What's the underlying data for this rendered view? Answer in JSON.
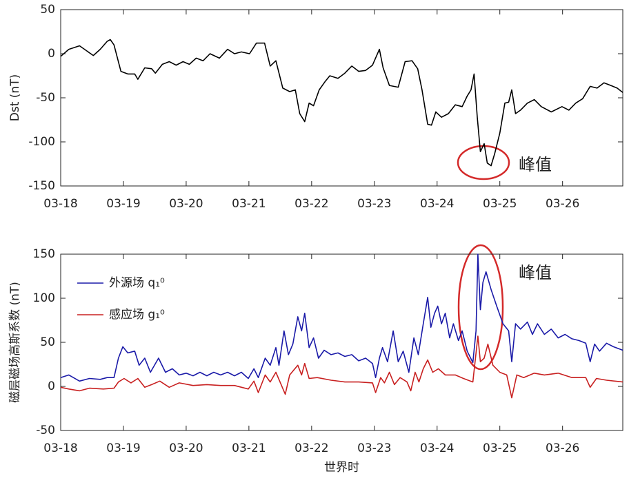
{
  "chart_data": [
    {
      "type": "line",
      "ylabel": "Dst (nT)",
      "annotation": "峰值",
      "color": "#000000",
      "xlim": [
        0,
        8.96
      ],
      "ylim": [
        -150,
        50
      ],
      "xticks": [
        {
          "value": 0,
          "label": "03-18"
        },
        {
          "value": 1,
          "label": "03-19"
        },
        {
          "value": 2,
          "label": "03-20"
        },
        {
          "value": 3,
          "label": "03-21"
        },
        {
          "value": 4,
          "label": "03-22"
        },
        {
          "value": 5,
          "label": "03-23"
        },
        {
          "value": 6,
          "label": "03-24"
        },
        {
          "value": 7,
          "label": "03-25"
        },
        {
          "value": 8,
          "label": "03-26"
        }
      ],
      "yticks": [
        -150,
        -100,
        -50,
        0,
        50
      ],
      "x": [
        0,
        0.13,
        0.3,
        0.52,
        0.63,
        0.74,
        0.79,
        0.85,
        0.96,
        1.07,
        1.18,
        1.23,
        1.34,
        1.45,
        1.51,
        1.62,
        1.73,
        1.84,
        1.95,
        2.05,
        2.16,
        2.27,
        2.38,
        2.53,
        2.66,
        2.77,
        2.88,
        3.01,
        3.12,
        3.25,
        3.34,
        3.43,
        3.54,
        3.65,
        3.74,
        3.81,
        3.89,
        3.96,
        4.03,
        4.12,
        4.22,
        4.29,
        4.42,
        4.53,
        4.64,
        4.75,
        4.86,
        4.97,
        5.08,
        5.14,
        5.24,
        5.38,
        5.49,
        5.6,
        5.69,
        5.76,
        5.85,
        5.91,
        5.98,
        6.07,
        6.18,
        6.29,
        6.4,
        6.48,
        6.54,
        6.59,
        6.64,
        6.69,
        6.75,
        6.8,
        6.86,
        6.92,
        7.0,
        7.08,
        7.14,
        7.19,
        7.25,
        7.33,
        7.44,
        7.55,
        7.66,
        7.82,
        7.99,
        8.1,
        8.21,
        8.32,
        8.44,
        8.55,
        8.66,
        8.77,
        8.87,
        8.96
      ],
      "values": [
        -3,
        5,
        9,
        -2,
        5,
        14,
        16,
        10,
        -20,
        -23,
        -23,
        -29,
        -16,
        -17,
        -22,
        -12,
        -9,
        -13,
        -9,
        -12,
        -5,
        -8,
        0,
        -5,
        5,
        0,
        2,
        0,
        12,
        12,
        -14,
        -8,
        -39,
        -43,
        -41,
        -68,
        -77,
        -56,
        -59,
        -41,
        -31,
        -25,
        -28,
        -22,
        -14,
        -20,
        -19,
        -13,
        5,
        -16,
        -36,
        -38,
        -9,
        -8,
        -17,
        -41,
        -80,
        -81,
        -66,
        -72,
        -68,
        -58,
        -60,
        -48,
        -41,
        -23,
        -72,
        -111,
        -102,
        -124,
        -127,
        -113,
        -90,
        -56,
        -55,
        -41,
        -68,
        -64,
        -56,
        -52,
        -60,
        -66,
        -60,
        -64,
        -56,
        -51,
        -37,
        -39,
        -33,
        -36,
        -39,
        -44
      ]
    },
    {
      "type": "line",
      "ylabel": "磁层磁场高斯系数 (nT)",
      "xlabel": "世界时",
      "annotation": "峰值",
      "xlim": [
        0,
        8.96
      ],
      "ylim": [
        -50,
        150
      ],
      "xticks": [
        {
          "value": 0,
          "label": "03-18"
        },
        {
          "value": 1,
          "label": "03-19"
        },
        {
          "value": 2,
          "label": "03-20"
        },
        {
          "value": 3,
          "label": "03-21"
        },
        {
          "value": 4,
          "label": "03-22"
        },
        {
          "value": 5,
          "label": "03-23"
        },
        {
          "value": 6,
          "label": "03-24"
        },
        {
          "value": 7,
          "label": "03-25"
        },
        {
          "value": 8,
          "label": "03-26"
        }
      ],
      "yticks": [
        -50,
        0,
        50,
        100,
        150
      ],
      "legend": "upper left",
      "series": [
        {
          "name": "外源场 q₁⁰",
          "color": "#1a1aa8",
          "x": [
            0,
            0.13,
            0.3,
            0.46,
            0.63,
            0.74,
            0.85,
            0.92,
            0.99,
            1.07,
            1.18,
            1.25,
            1.34,
            1.43,
            1.56,
            1.67,
            1.78,
            1.89,
            2.0,
            2.11,
            2.22,
            2.33,
            2.44,
            2.55,
            2.66,
            2.77,
            2.88,
            2.99,
            3.08,
            3.15,
            3.26,
            3.34,
            3.43,
            3.48,
            3.56,
            3.63,
            3.7,
            3.78,
            3.84,
            3.89,
            3.96,
            4.03,
            4.11,
            4.2,
            4.31,
            4.42,
            4.53,
            4.64,
            4.75,
            4.86,
            4.97,
            5.02,
            5.08,
            5.13,
            5.21,
            5.3,
            5.38,
            5.46,
            5.55,
            5.63,
            5.7,
            5.78,
            5.85,
            5.9,
            5.96,
            6.01,
            6.07,
            6.13,
            6.2,
            6.26,
            6.34,
            6.4,
            6.48,
            6.57,
            6.62,
            6.65,
            6.69,
            6.73,
            6.78,
            6.86,
            6.95,
            7.05,
            7.14,
            7.19,
            7.25,
            7.33,
            7.44,
            7.52,
            7.6,
            7.71,
            7.82,
            7.93,
            8.04,
            8.15,
            8.26,
            8.37,
            8.44,
            8.51,
            8.59,
            8.7,
            8.81,
            8.96
          ],
          "values": [
            10,
            13,
            6,
            9,
            8,
            10,
            10,
            32,
            45,
            38,
            40,
            24,
            32,
            16,
            32,
            16,
            20,
            13,
            15,
            12,
            16,
            12,
            16,
            13,
            16,
            12,
            16,
            9,
            20,
            10,
            32,
            24,
            44,
            24,
            63,
            36,
            48,
            79,
            63,
            83,
            44,
            55,
            32,
            41,
            36,
            38,
            34,
            36,
            29,
            32,
            26,
            10,
            32,
            44,
            28,
            63,
            28,
            40,
            16,
            55,
            36,
            71,
            101,
            67,
            83,
            91,
            71,
            83,
            55,
            71,
            52,
            63,
            40,
            27,
            63,
            150,
            87,
            118,
            130,
            110,
            91,
            71,
            63,
            28,
            71,
            65,
            73,
            59,
            71,
            59,
            65,
            55,
            59,
            54,
            52,
            49,
            28,
            48,
            40,
            49,
            45,
            41
          ]
        },
        {
          "name": "感应场 g₁⁰",
          "color": "#c82020",
          "x": [
            0,
            0.13,
            0.3,
            0.46,
            0.68,
            0.85,
            0.92,
            1.01,
            1.12,
            1.23,
            1.34,
            1.45,
            1.58,
            1.73,
            1.89,
            2.11,
            2.33,
            2.55,
            2.77,
            2.99,
            3.08,
            3.15,
            3.26,
            3.34,
            3.43,
            3.52,
            3.58,
            3.65,
            3.78,
            3.84,
            3.89,
            3.96,
            4.09,
            4.31,
            4.53,
            4.75,
            4.97,
            5.02,
            5.1,
            5.16,
            5.24,
            5.32,
            5.41,
            5.52,
            5.58,
            5.65,
            5.71,
            5.78,
            5.85,
            5.93,
            6.02,
            6.13,
            6.29,
            6.42,
            6.57,
            6.65,
            6.69,
            6.75,
            6.81,
            6.89,
            7.0,
            7.11,
            7.19,
            7.27,
            7.38,
            7.55,
            7.71,
            7.93,
            8.15,
            8.37,
            8.44,
            8.54,
            8.7,
            8.96
          ],
          "values": [
            -1,
            -3,
            -5,
            -2,
            -3,
            -2,
            5,
            9,
            4,
            9,
            -1,
            2,
            6,
            -1,
            4,
            1,
            2,
            1,
            1,
            -3,
            6,
            -7,
            13,
            5,
            16,
            1,
            -9,
            13,
            24,
            13,
            26,
            9,
            10,
            7,
            5,
            5,
            4,
            -7,
            10,
            4,
            16,
            2,
            10,
            5,
            -5,
            16,
            5,
            20,
            30,
            16,
            20,
            13,
            13,
            9,
            5,
            57,
            28,
            32,
            48,
            24,
            16,
            13,
            -13,
            13,
            10,
            15,
            13,
            15,
            10,
            10,
            -1,
            9,
            7,
            5
          ]
        }
      ]
    }
  ]
}
